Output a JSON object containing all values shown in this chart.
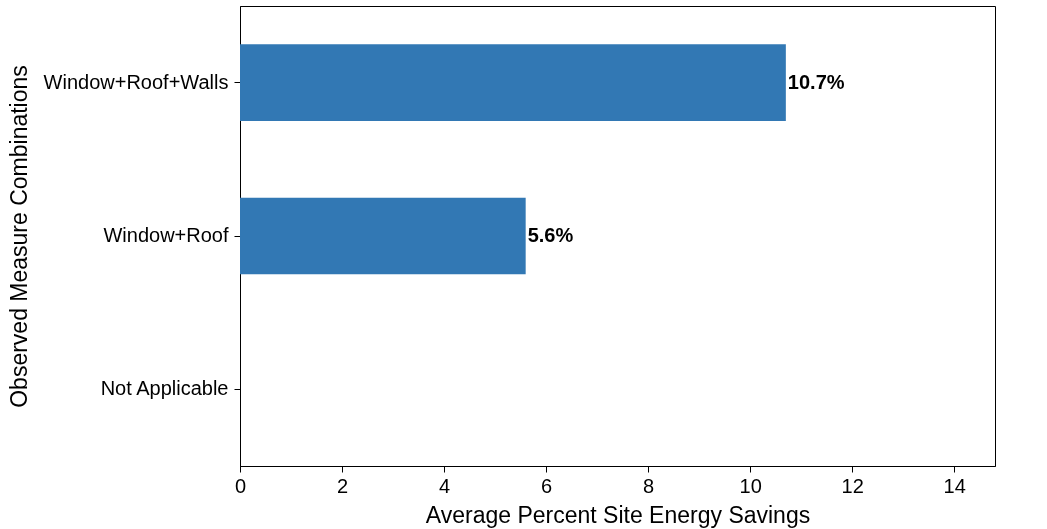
{
  "chart_data": {
    "type": "bar",
    "orientation": "horizontal",
    "xlabel": "Average Percent Site Energy Savings",
    "ylabel": "Observed Measure Combinations",
    "categories": [
      "Window+Roof+Walls",
      "Window+Roof",
      "Not Applicable"
    ],
    "values": [
      10.7,
      5.6,
      0
    ],
    "color": "#3278b4",
    "value_labels": [
      "10.7%",
      "5.6%",
      null
    ],
    "xlim": [
      0,
      14.8
    ],
    "xticks": [
      0,
      2,
      4,
      6,
      8,
      10,
      12,
      14
    ],
    "grid": false
  }
}
